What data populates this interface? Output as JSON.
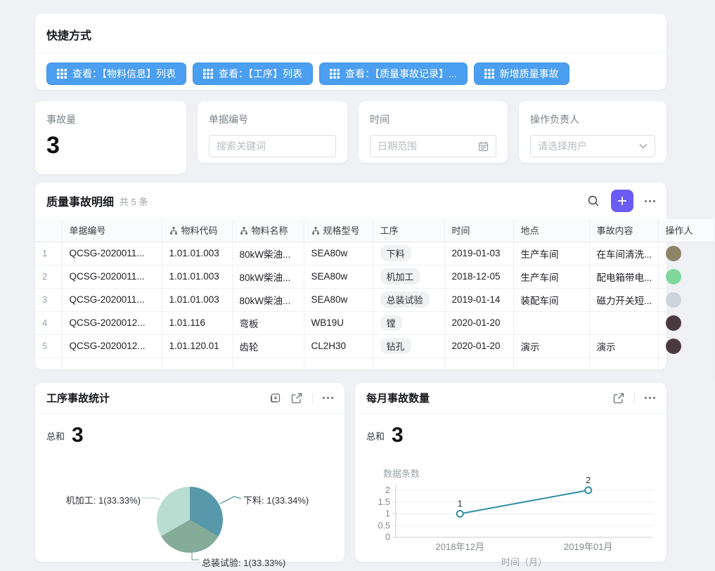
{
  "accent_colors": {
    "shortcut_blue": "#4c9ff0",
    "plus_purple": "#6b5bf5"
  },
  "shortcuts": {
    "title": "快捷方式",
    "buttons": [
      "查看：【物料信息】列表",
      "查看：【工序】列表",
      "查看：【质量事故记录】...",
      "新增质量事故"
    ]
  },
  "filters": {
    "incident_count": {
      "label": "事故量",
      "value": "3"
    },
    "doc_number": {
      "label": "单据编号",
      "placeholder": "搜索关键词"
    },
    "time": {
      "label": "时间",
      "placeholder": "日期范围"
    },
    "operator": {
      "label": "操作负责人",
      "placeholder": "请选择用户"
    }
  },
  "table": {
    "title": "质量事故明细",
    "count_text": "共 5 条",
    "columns": [
      {
        "label": "",
        "linked": false
      },
      {
        "label": "单据编号",
        "linked": false
      },
      {
        "label": "物料代码",
        "linked": true
      },
      {
        "label": "物料名称",
        "linked": true
      },
      {
        "label": "规格型号",
        "linked": true
      },
      {
        "label": "工序",
        "linked": false
      },
      {
        "label": "时间",
        "linked": false
      },
      {
        "label": "地点",
        "linked": false
      },
      {
        "label": "事故内容",
        "linked": false
      },
      {
        "label": "操作人",
        "linked": false
      }
    ],
    "rows": [
      {
        "num": "1",
        "doc": "QCSG-2020011...",
        "code": "1.01.01.003",
        "name": "80kW柴油...",
        "spec": "SEA80w",
        "process": "下料",
        "date": "2019-01-03",
        "place": "生产车间",
        "content": "在车间清洗...",
        "avatar_color": "#8d8466"
      },
      {
        "num": "2",
        "doc": "QCSG-2020011...",
        "code": "1.01.01.003",
        "name": "80kW柴油...",
        "spec": "SEA80w",
        "process": "机加工",
        "date": "2018-12-05",
        "place": "生产车间",
        "content": "配电箱带电...",
        "avatar_color": "#7fd79e"
      },
      {
        "num": "3",
        "doc": "QCSG-2020011...",
        "code": "1.01.01.003",
        "name": "80kW柴油...",
        "spec": "SEA80w",
        "process": "总装试验",
        "date": "2019-01-14",
        "place": "装配车间",
        "content": "磁力开关短...",
        "avatar_color": "#ccd5dc"
      },
      {
        "num": "4",
        "doc": "QCSG-2020012...",
        "code": "1.01.116",
        "name": "弯板",
        "spec": "WB19U",
        "process": "镗",
        "date": "2020-01-20",
        "place": "",
        "content": "",
        "avatar_color": "#4a3a3f"
      },
      {
        "num": "5",
        "doc": "QCSG-2020012...",
        "code": "1.01.120.01",
        "name": "齿轮",
        "spec": "CL2H30",
        "process": "钻孔",
        "date": "2020-01-20",
        "place": "演示",
        "content": "演示",
        "avatar_color": "#4a3a3f"
      }
    ]
  },
  "pie_card": {
    "title": "工序事故统计",
    "sum_label": "总和",
    "sum_value": "3"
  },
  "line_card": {
    "title": "每月事故数量",
    "sum_label": "总和",
    "sum_value": "3"
  },
  "chart_data": [
    {
      "type": "pie",
      "title": "工序事故统计",
      "total": 3,
      "slices": [
        {
          "name": "下料",
          "value": 1,
          "label": "下料: 1(33.34%)",
          "color": "#5799aa"
        },
        {
          "name": "总装试验",
          "value": 1,
          "label": "总装试验: 1(33.33%)",
          "color": "#85ab99"
        },
        {
          "name": "机加工",
          "value": 1,
          "label": "机加工: 1(33.33%)",
          "color": "#b9ddd0"
        }
      ],
      "legend_position": "callout-labels",
      "start_angle_deg": 0
    },
    {
      "type": "line",
      "title": "每月事故数量",
      "ylabel": "数据条数",
      "xlabel": "时间（月）",
      "categories": [
        "2018年12月",
        "2019年01月"
      ],
      "values": [
        1,
        2
      ],
      "ylim": [
        0,
        2
      ],
      "yticks": [
        0,
        0.5,
        1,
        1.5,
        2
      ],
      "grid": true,
      "color": "#2f8fa3"
    }
  ]
}
